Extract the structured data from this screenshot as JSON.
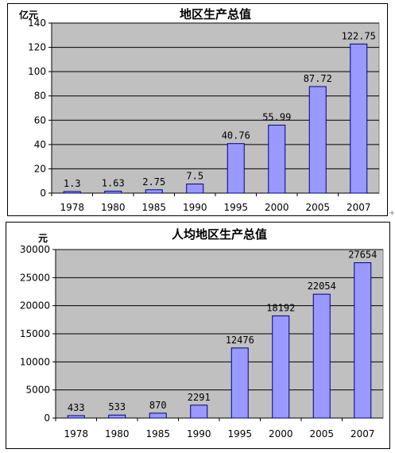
{
  "chart_data": [
    {
      "type": "bar",
      "title": "地区生产总值",
      "unit_label": "亿元",
      "categories": [
        "1978",
        "1980",
        "1985",
        "1990",
        "1995",
        "2000",
        "2005",
        "2007"
      ],
      "values": [
        1.3,
        1.63,
        2.75,
        7.5,
        40.76,
        55.99,
        87.72,
        122.75
      ],
      "value_labels": [
        "1.3",
        "1.63",
        "2.75",
        "7.5",
        "40.76",
        "55.99",
        "87.72",
        "122.75"
      ],
      "ylim": [
        0,
        140
      ],
      "yticks": [
        0,
        20,
        40,
        60,
        80,
        100,
        120,
        140
      ],
      "grid": true,
      "legend": "none"
    },
    {
      "type": "bar",
      "title": "人均地区生产总值",
      "unit_label": "元",
      "categories": [
        "1978",
        "1980",
        "1985",
        "1990",
        "1995",
        "2000",
        "2005",
        "2007"
      ],
      "values": [
        433,
        533,
        870,
        2291,
        12476,
        18192,
        22054,
        27654
      ],
      "value_labels": [
        "433",
        "533",
        "870",
        "2291",
        "12476",
        "18192",
        "22054",
        "27654"
      ],
      "ylim": [
        0,
        30000
      ],
      "yticks": [
        0,
        5000,
        10000,
        15000,
        20000,
        25000,
        30000
      ],
      "grid": true,
      "legend": "none"
    }
  ],
  "colors": {
    "plot_bg": "#c0c0c0",
    "bar_fill": "#9999ff",
    "bar_stroke": "#000080",
    "grid": "#000000"
  }
}
